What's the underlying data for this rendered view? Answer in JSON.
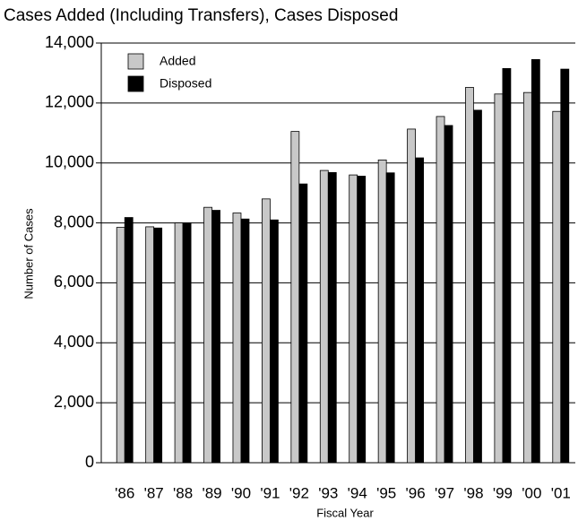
{
  "chart_data": {
    "type": "bar",
    "title": "Cases Added (Including Transfers), Cases Disposed",
    "x_label": "Fiscal Year",
    "y_label": "Number of Cases",
    "categories": [
      "'86",
      "'87",
      "'88",
      "'89",
      "'90",
      "'91",
      "'92",
      "'93",
      "'94",
      "'95",
      "'96",
      "'97",
      "'98",
      "'99",
      "'00",
      "'01"
    ],
    "series": [
      {
        "name": "Added",
        "color": "#c8c8c8",
        "values": [
          7850,
          7870,
          8000,
          8520,
          8330,
          8800,
          11050,
          9750,
          9600,
          10100,
          11130,
          11550,
          12520,
          12300,
          12350,
          11720
        ]
      },
      {
        "name": "Disposed",
        "color": "#000000",
        "values": [
          8180,
          7830,
          8000,
          8420,
          8130,
          8100,
          9300,
          9680,
          9560,
          9670,
          10170,
          11250,
          11760,
          13150,
          13450,
          13130
        ]
      }
    ],
    "ylim": [
      0,
      14000
    ],
    "yticks": [
      0,
      {
        "value": 2000,
        "label": "2,000"
      },
      {
        "value": 4000,
        "label": "4,000"
      },
      {
        "value": 6000,
        "label": "6,000"
      },
      {
        "value": 8000,
        "label": "8,000"
      },
      {
        "value": 10000,
        "label": "10,000"
      },
      {
        "value": 12000,
        "label": "12,000"
      },
      {
        "value": 14000,
        "label": "14,000"
      }
    ],
    "grid": true,
    "legend": "upper left"
  }
}
